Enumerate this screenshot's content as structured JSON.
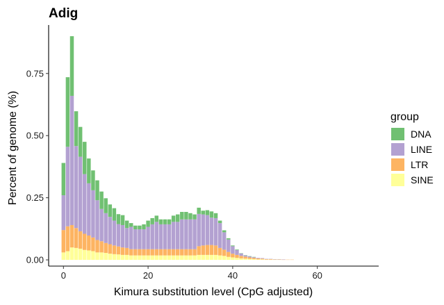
{
  "chart_data": {
    "type": "bar",
    "stacked": true,
    "title": "Adig",
    "xlabel": "Kimura substitution level (CpG adjusted)",
    "ylabel": "Percent of genome (%)",
    "xlim": [
      -3.5,
      74.5
    ],
    "ylim": [
      -0.025,
      0.945
    ],
    "xticks": [
      0,
      20,
      40,
      60
    ],
    "xtick_labels": [
      "0",
      "20",
      "40",
      "60"
    ],
    "yticks": [
      0,
      0.25,
      0.5,
      0.75
    ],
    "ytick_labels": [
      "0.00",
      "0.25",
      "0.50",
      "0.75"
    ],
    "grid": false,
    "legend": {
      "title": "group",
      "position": "right"
    },
    "x": [
      0,
      1,
      2,
      3,
      4,
      5,
      6,
      7,
      8,
      9,
      10,
      11,
      12,
      13,
      14,
      15,
      16,
      17,
      18,
      19,
      20,
      21,
      22,
      23,
      24,
      25,
      26,
      27,
      28,
      29,
      30,
      31,
      32,
      33,
      34,
      35,
      36,
      37,
      38,
      39,
      40,
      41,
      42,
      43,
      44,
      45,
      46,
      47,
      48,
      49,
      50,
      51,
      52,
      53,
      54
    ],
    "series": [
      {
        "name": "SINE",
        "color": "#ffff99",
        "values": [
          0.03,
          0.035,
          0.05,
          0.048,
          0.045,
          0.04,
          0.038,
          0.035,
          0.03,
          0.03,
          0.028,
          0.025,
          0.023,
          0.022,
          0.02,
          0.02,
          0.018,
          0.018,
          0.018,
          0.018,
          0.018,
          0.018,
          0.018,
          0.018,
          0.018,
          0.018,
          0.018,
          0.018,
          0.018,
          0.018,
          0.018,
          0.018,
          0.02,
          0.02,
          0.02,
          0.02,
          0.02,
          0.018,
          0.016,
          0.012,
          0.01,
          0.008,
          0.006,
          0.005,
          0.004,
          0.003,
          0.002,
          0.002,
          0.001,
          0.001,
          0.001,
          0.001,
          0.0,
          0.0,
          0.0
        ]
      },
      {
        "name": "LTR",
        "color": "#fdb462",
        "values": [
          0.09,
          0.1,
          0.09,
          0.08,
          0.07,
          0.065,
          0.06,
          0.055,
          0.05,
          0.045,
          0.04,
          0.038,
          0.035,
          0.032,
          0.03,
          0.028,
          0.025,
          0.025,
          0.025,
          0.025,
          0.025,
          0.025,
          0.025,
          0.025,
          0.025,
          0.025,
          0.025,
          0.025,
          0.025,
          0.025,
          0.025,
          0.025,
          0.035,
          0.038,
          0.04,
          0.04,
          0.038,
          0.03,
          0.025,
          0.02,
          0.015,
          0.012,
          0.01,
          0.008,
          0.006,
          0.005,
          0.004,
          0.003,
          0.002,
          0.002,
          0.001,
          0.001,
          0.001,
          0.001,
          0.001
        ]
      },
      {
        "name": "LINE",
        "color": "#b3a1d1",
        "values": [
          0.14,
          0.32,
          0.52,
          0.33,
          0.3,
          0.24,
          0.21,
          0.19,
          0.16,
          0.13,
          0.12,
          0.11,
          0.1,
          0.09,
          0.09,
          0.08,
          0.09,
          0.08,
          0.08,
          0.08,
          0.09,
          0.1,
          0.11,
          0.1,
          0.1,
          0.1,
          0.11,
          0.11,
          0.12,
          0.12,
          0.12,
          0.12,
          0.13,
          0.125,
          0.12,
          0.11,
          0.11,
          0.1,
          0.07,
          0.05,
          0.03,
          0.02,
          0.01,
          0.005,
          0.004,
          0.003,
          0.002,
          0.002,
          0.001,
          0.001,
          0.001,
          0.001,
          0.001,
          0.0,
          0.0
        ]
      },
      {
        "name": "DNA",
        "color": "#70c072",
        "values": [
          0.13,
          0.28,
          0.24,
          0.14,
          0.12,
          0.13,
          0.1,
          0.08,
          0.08,
          0.07,
          0.06,
          0.05,
          0.05,
          0.04,
          0.04,
          0.03,
          0.015,
          0.015,
          0.015,
          0.02,
          0.025,
          0.025,
          0.025,
          0.02,
          0.02,
          0.02,
          0.025,
          0.03,
          0.03,
          0.03,
          0.025,
          0.02,
          0.025,
          0.015,
          0.02,
          0.025,
          0.02,
          0.01,
          0.008,
          0.005,
          0.003,
          0.002,
          0.001,
          0.001,
          0.001,
          0.001,
          0.0,
          0.0,
          0.0,
          0.0,
          0.0,
          0.0,
          0.0,
          0.0,
          0.0
        ]
      }
    ]
  }
}
